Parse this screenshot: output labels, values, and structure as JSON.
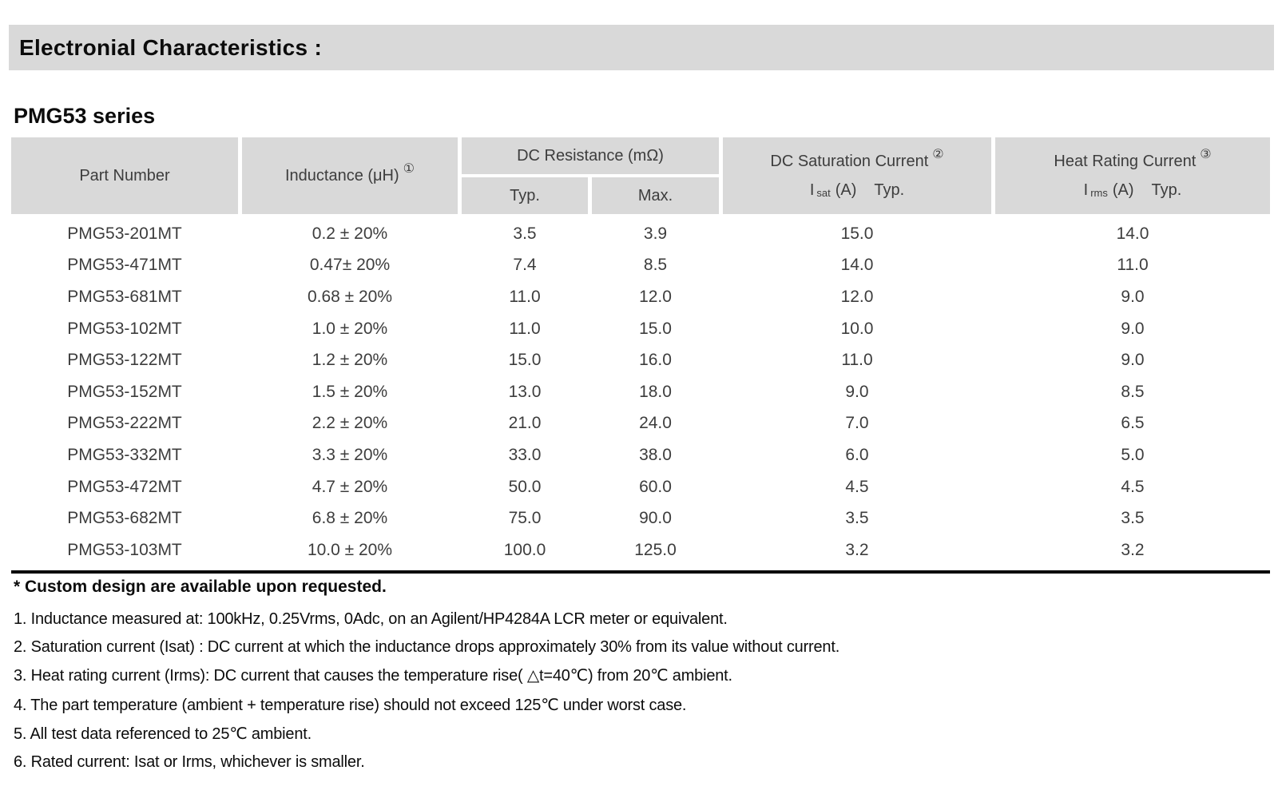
{
  "page": {
    "section_header": "Electronial Characteristics :",
    "series_title": "PMG53 series"
  },
  "colors": {
    "band_gray": "#d9d9d9",
    "table_text_gray": "#3d3d3d",
    "text_black": "#0c0c0c"
  },
  "table": {
    "headers": {
      "part_number": "Part Number",
      "inductance": "Inductance (μH)",
      "inductance_note_ref": "①",
      "dc_resistance": "DC Resistance (mΩ)",
      "dcr_typ": "Typ.",
      "dcr_max": "Max.",
      "saturation": "DC Saturation Current",
      "saturation_note_ref": "②",
      "isat": {
        "i": "I",
        "sub": "sat",
        "unit": "(A)",
        "typ": "Typ."
      },
      "heat": "Heat Rating Current",
      "heat_note_ref": "③",
      "irms": {
        "i": "I",
        "sub": "rms",
        "unit": "(A)",
        "typ": "Typ."
      }
    },
    "rows": [
      [
        "PMG53-201MT",
        "0.2 ± 20%",
        "3.5",
        "3.9",
        "15.0",
        "14.0"
      ],
      [
        "PMG53-471MT",
        "0.47± 20%",
        "7.4",
        "8.5",
        "14.0",
        "11.0"
      ],
      [
        "PMG53-681MT",
        "0.68 ± 20%",
        "11.0",
        "12.0",
        "12.0",
        "9.0"
      ],
      [
        "PMG53-102MT",
        "1.0 ± 20%",
        "11.0",
        "15.0",
        "10.0",
        "9.0"
      ],
      [
        "PMG53-122MT",
        "1.2 ± 20%",
        "15.0",
        "16.0",
        "11.0",
        "9.0"
      ],
      [
        "PMG53-152MT",
        "1.5 ± 20%",
        "13.0",
        "18.0",
        "9.0",
        "8.5"
      ],
      [
        "PMG53-222MT",
        "2.2 ± 20%",
        "21.0",
        "24.0",
        "7.0",
        "6.5"
      ],
      [
        "PMG53-332MT",
        "3.3 ± 20%",
        "33.0",
        "38.0",
        "6.0",
        "5.0"
      ],
      [
        "PMG53-472MT",
        "4.7 ± 20%",
        "50.0",
        "60.0",
        "4.5",
        "4.5"
      ],
      [
        "PMG53-682MT",
        "6.8 ± 20%",
        "75.0",
        "90.0",
        "3.5",
        "3.5"
      ],
      [
        "PMG53-103MT",
        "10.0 ± 20%",
        "100.0",
        "125.0",
        "3.2",
        "3.2"
      ]
    ]
  },
  "notes": {
    "custom": "* Custom design are available upon requested.",
    "items": [
      "1. Inductance measured at: 100kHz, 0.25Vrms, 0Adc, on an Agilent/HP4284A LCR meter or equivalent.",
      "2. Saturation current (Isat) : DC current at which the inductance drops approximately 30% from its value without current.",
      "3. Heat rating current (Irms): DC current that causes the temperature rise( △t=40℃) from 20℃ ambient.",
      "4. The part temperature (ambient + temperature rise) should not exceed 125℃ under worst case.",
      "5. All test data referenced to 25℃ ambient.",
      "6. Rated current: Isat or Irms, whichever is smaller."
    ]
  }
}
